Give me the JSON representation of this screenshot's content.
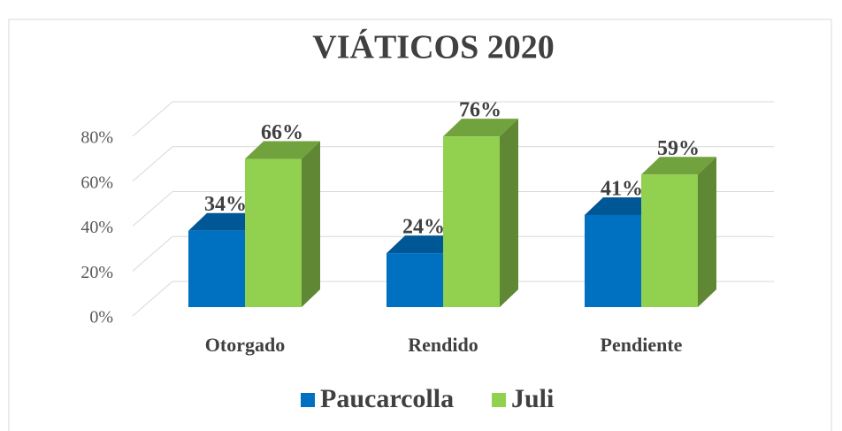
{
  "chart_data": {
    "type": "bar3d",
    "title": "VIÁTICOS 2020",
    "categories": [
      "Otorgado",
      "Rendido",
      "Pendiente"
    ],
    "series": [
      {
        "name": "Paucarcolla",
        "color": "#0070c0",
        "values": [
          34,
          24,
          41
        ],
        "value_labels": [
          "34%",
          "24%",
          "41%"
        ]
      },
      {
        "name": "Juli",
        "color": "#92d050",
        "values": [
          66,
          76,
          59
        ],
        "value_labels": [
          "66%",
          "76%",
          "59%"
        ]
      }
    ],
    "ylim": [
      0,
      80
    ],
    "yticks": [
      {
        "value": 0,
        "label": "0%"
      },
      {
        "value": 20,
        "label": "20%"
      },
      {
        "value": 40,
        "label": "40%"
      },
      {
        "value": 60,
        "label": "60%"
      },
      {
        "value": 80,
        "label": "80%"
      }
    ],
    "grid": true,
    "legend": "bottom"
  }
}
